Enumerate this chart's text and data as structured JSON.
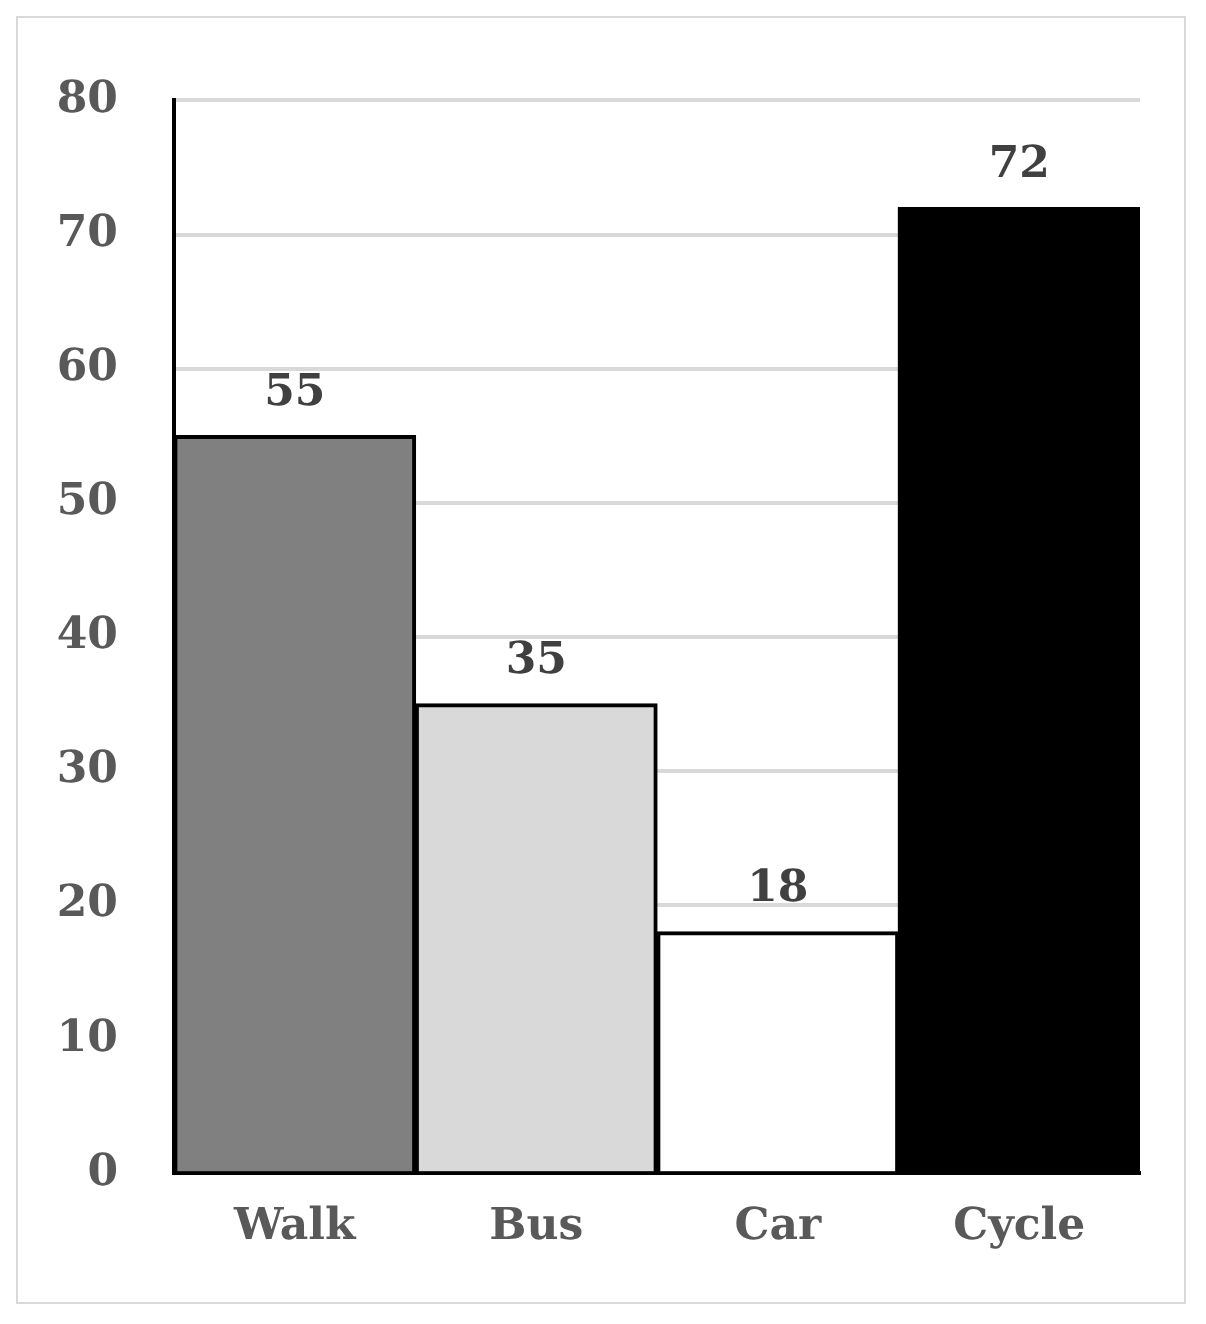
{
  "chart_data": {
    "type": "bar",
    "categories": [
      "Walk",
      "Bus",
      "Car",
      "Cycle"
    ],
    "values": [
      55,
      35,
      18,
      72
    ],
    "colors": [
      "#808080",
      "#d9d9d9",
      "#ffffff",
      "#000000"
    ],
    "ylim": [
      0,
      80
    ],
    "yticks": [
      0,
      10,
      20,
      30,
      40,
      50,
      60,
      70,
      80
    ],
    "grid": "y",
    "data_labels": true
  }
}
